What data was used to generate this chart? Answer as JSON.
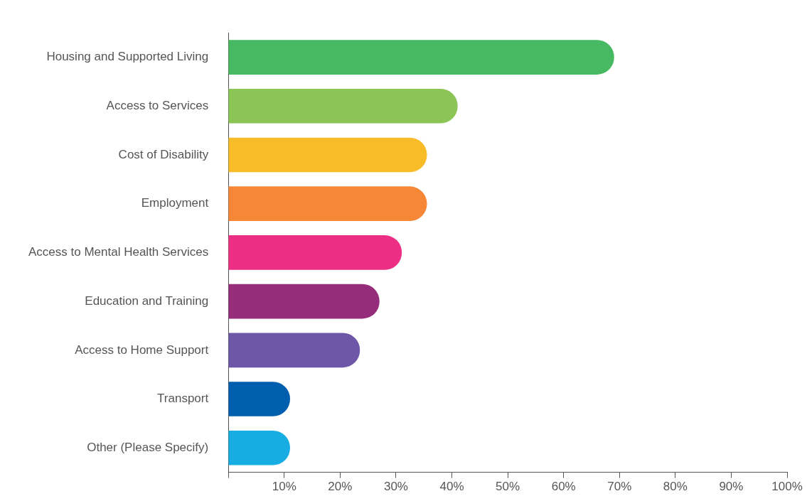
{
  "chart_data": {
    "type": "bar",
    "orientation": "horizontal",
    "categories": [
      "Housing and Supported Living",
      "Access to Services",
      "Cost of Disability",
      "Employment",
      "Access to Mental Health Services",
      "Education and Training",
      "Access to Home Support",
      "Transport",
      "Other (Please Specify)"
    ],
    "values": [
      69,
      41,
      35.5,
      35.5,
      31,
      27,
      23.5,
      11,
      11
    ],
    "colors": [
      "#48b963",
      "#8bc556",
      "#f8bc28",
      "#f58737",
      "#ec2f85",
      "#952d7b",
      "#6e57a7",
      "#005eae",
      "#17ade3"
    ],
    "xlim": [
      0,
      100
    ],
    "xticks": [
      {
        "value": 0,
        "label": null
      },
      {
        "value": 10,
        "label": "10%"
      },
      {
        "value": 20,
        "label": "20%"
      },
      {
        "value": 30,
        "label": "30%"
      },
      {
        "value": 40,
        "label": "40%"
      },
      {
        "value": 50,
        "label": "50%"
      },
      {
        "value": 60,
        "label": "60%"
      },
      {
        "value": 70,
        "label": "70%"
      },
      {
        "value": 80,
        "label": "80%"
      },
      {
        "value": 90,
        "label": "90%"
      },
      {
        "value": 100,
        "label": "100%"
      }
    ],
    "grid": false,
    "legend": false
  }
}
